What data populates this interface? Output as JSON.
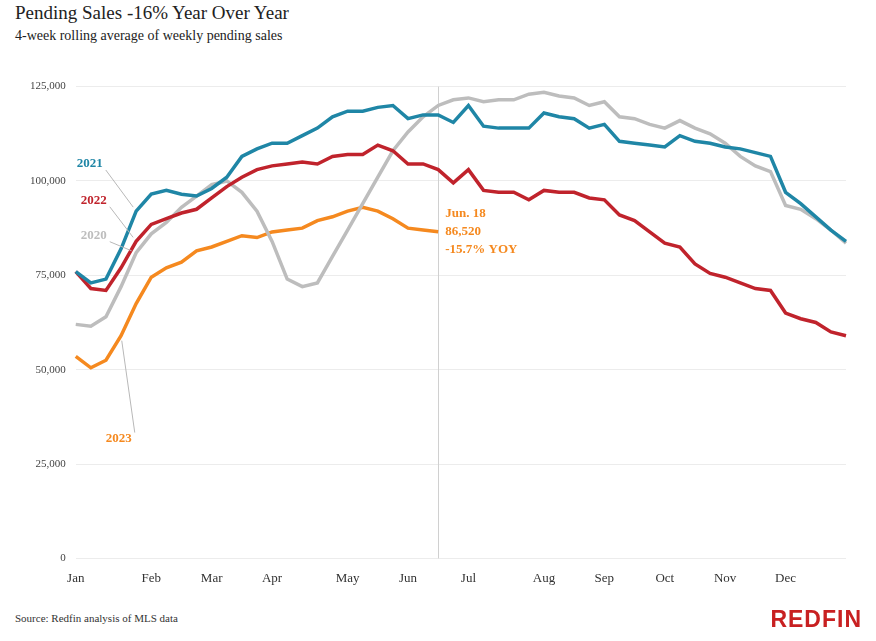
{
  "chart_data": {
    "type": "line",
    "title": "Pending Sales -16% Year Over Year",
    "subtitle": "4-week rolling average of weekly pending sales",
    "source": "Source: Redfin analysis of MLS data",
    "brand": "REDFIN",
    "categories": [
      "Jan",
      null,
      null,
      null,
      null,
      "Feb",
      null,
      null,
      null,
      "Mar",
      null,
      null,
      null,
      "Apr",
      null,
      null,
      null,
      null,
      "May",
      null,
      null,
      null,
      "Jun",
      null,
      null,
      null,
      "Jul",
      null,
      null,
      null,
      null,
      "Aug",
      null,
      null,
      null,
      "Sep",
      null,
      null,
      null,
      "Oct",
      null,
      null,
      null,
      "Nov",
      null,
      null,
      null,
      "Dec",
      null,
      null,
      null,
      null
    ],
    "series": [
      {
        "name": "2021",
        "color": "#1f86a6",
        "values": [
          76000,
          73000,
          74000,
          82000,
          92000,
          96500,
          97500,
          96500,
          96000,
          98000,
          101000,
          106500,
          108500,
          110000,
          110000,
          112000,
          114000,
          117000,
          118500,
          118500,
          119500,
          120000,
          116500,
          117500,
          117500,
          115500,
          120000,
          114500,
          114000,
          114000,
          114000,
          118000,
          117000,
          116500,
          114000,
          115000,
          110500,
          110000,
          109500,
          109000,
          112000,
          110500,
          110000,
          109000,
          108500,
          107500,
          106500,
          97000,
          94000,
          90500,
          87000,
          84000
        ]
      },
      {
        "name": "2022",
        "color": "#c0232c",
        "values": [
          76000,
          71500,
          71000,
          77000,
          84000,
          88500,
          90000,
          91500,
          92500,
          95500,
          98500,
          101000,
          103000,
          104000,
          104500,
          105000,
          104500,
          106500,
          107000,
          107000,
          109500,
          108000,
          104500,
          104500,
          103000,
          99500,
          103000,
          97500,
          97000,
          97000,
          95000,
          97500,
          97000,
          97000,
          95500,
          95000,
          91000,
          89500,
          86500,
          83500,
          82500,
          78000,
          75500,
          74500,
          73000,
          71500,
          71000,
          65000,
          63500,
          62500,
          60000,
          59000
        ]
      },
      {
        "name": "2020",
        "color": "#bdbdbd",
        "values": [
          62000,
          61500,
          64000,
          72000,
          81000,
          86000,
          89000,
          93000,
          96000,
          99000,
          100000,
          97000,
          92000,
          84000,
          74000,
          72000,
          73000,
          80000,
          87000,
          94000,
          101000,
          108000,
          113000,
          117000,
          120000,
          121500,
          122000,
          121000,
          121500,
          121500,
          123000,
          123500,
          122500,
          122000,
          120000,
          121000,
          117000,
          116500,
          115000,
          114000,
          116000,
          114000,
          112500,
          110000,
          106500,
          104000,
          102500,
          93500,
          92500,
          90000,
          87000,
          83500
        ]
      },
      {
        "name": "2023",
        "color": "#f5891f",
        "values": [
          53500,
          50500,
          52500,
          59000,
          67500,
          74500,
          77000,
          78500,
          81500,
          82500,
          84000,
          85500,
          85000,
          86500,
          87000,
          87500,
          89500,
          90500,
          92000,
          93000,
          92000,
          90000,
          87500,
          87000,
          86520,
          null,
          null,
          null,
          null,
          null,
          null,
          null,
          null,
          null,
          null,
          null,
          null,
          null,
          null,
          null,
          null,
          null,
          null,
          null,
          null,
          null,
          null,
          null,
          null,
          null,
          null,
          null
        ]
      }
    ],
    "annotations": [
      {
        "series": "2023",
        "text": [
          "Jun. 18",
          "86,520",
          "-15.7% YOY"
        ]
      }
    ],
    "ylim": [
      0,
      125000
    ],
    "yticks": [
      0,
      {
        "value": 25000,
        "label": "25,000"
      },
      {
        "value": 50000,
        "label": "50,000"
      },
      {
        "value": 75000,
        "label": "75,000"
      },
      {
        "value": 100000,
        "label": "100,000"
      },
      {
        "value": 125000,
        "label": "125,000"
      }
    ],
    "grid": true
  }
}
